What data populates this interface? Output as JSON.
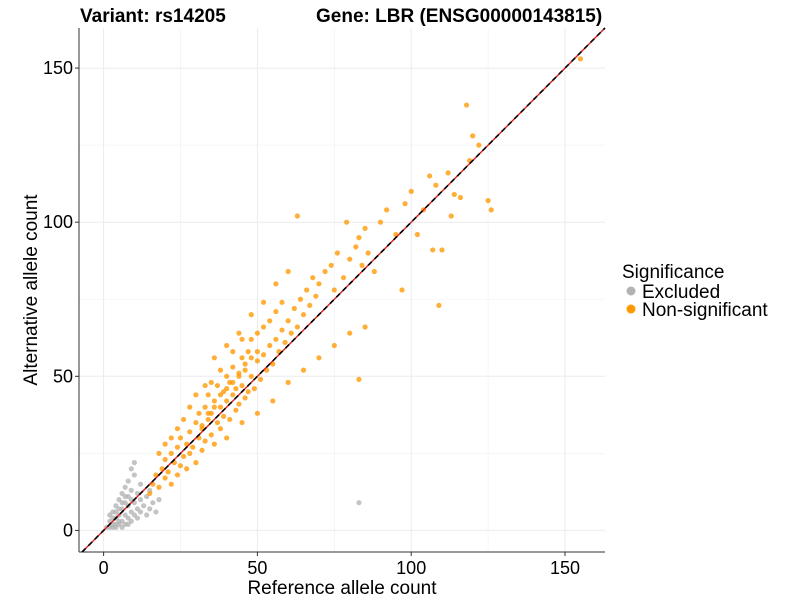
{
  "chart_data": {
    "type": "scatter",
    "title_left": "Variant: rs14205",
    "title_right": "Gene: LBR (ENSG00000143815)",
    "xlabel": "Reference allele count",
    "ylabel": "Alternative allele count",
    "xlim": [
      -8,
      163
    ],
    "ylim": [
      -7,
      163
    ],
    "x_ticks": [
      0,
      50,
      100,
      150
    ],
    "y_ticks": [
      0,
      50,
      100,
      150
    ],
    "grid": true,
    "legend": {
      "title": "Significance",
      "placement": "right",
      "entries": [
        {
          "label": "Excluded",
          "color": "#b3b3b3"
        },
        {
          "label": "Non-significant",
          "color": "#ff9900"
        }
      ]
    },
    "reference_lines": [
      {
        "kind": "identity",
        "color": "#e41a1c",
        "style": "solid"
      },
      {
        "kind": "fit",
        "color": "#000000",
        "style": "dashed"
      }
    ],
    "series": [
      {
        "name": "Excluded",
        "color": "#b3b3b3",
        "points": [
          [
            1,
            1
          ],
          [
            2,
            3
          ],
          [
            2,
            5
          ],
          [
            3,
            2
          ],
          [
            3,
            6
          ],
          [
            4,
            1
          ],
          [
            4,
            4
          ],
          [
            4,
            8
          ],
          [
            5,
            2
          ],
          [
            5,
            5
          ],
          [
            5,
            10
          ],
          [
            6,
            3
          ],
          [
            6,
            7
          ],
          [
            6,
            12
          ],
          [
            7,
            2
          ],
          [
            7,
            5
          ],
          [
            7,
            9
          ],
          [
            7,
            14
          ],
          [
            8,
            4
          ],
          [
            8,
            8
          ],
          [
            8,
            11
          ],
          [
            8,
            16
          ],
          [
            9,
            3
          ],
          [
            9,
            6
          ],
          [
            9,
            10
          ],
          [
            9,
            13
          ],
          [
            10,
            5
          ],
          [
            10,
            9
          ],
          [
            10,
            18
          ],
          [
            11,
            4
          ],
          [
            11,
            7
          ],
          [
            11,
            12
          ],
          [
            12,
            6
          ],
          [
            12,
            10
          ],
          [
            12,
            15
          ],
          [
            13,
            8
          ],
          [
            14,
            5
          ],
          [
            14,
            11
          ],
          [
            15,
            7
          ],
          [
            15,
            13
          ],
          [
            16,
            9
          ],
          [
            17,
            6
          ],
          [
            18,
            10
          ],
          [
            3,
            4
          ],
          [
            4,
            6
          ],
          [
            5,
            7
          ],
          [
            6,
            9
          ],
          [
            7,
            11
          ],
          [
            2,
            1
          ],
          [
            3,
            1
          ],
          [
            4,
            2
          ],
          [
            5,
            3
          ],
          [
            6,
            1
          ],
          [
            8,
            2
          ],
          [
            9,
            20
          ],
          [
            10,
            22
          ],
          [
            83,
            9
          ]
        ]
      },
      {
        "name": "Non-significant",
        "color": "#ff9900",
        "points": [
          [
            15,
            12
          ],
          [
            16,
            15
          ],
          [
            17,
            18
          ],
          [
            18,
            14
          ],
          [
            19,
            20
          ],
          [
            20,
            17
          ],
          [
            20,
            23
          ],
          [
            21,
            19
          ],
          [
            22,
            25
          ],
          [
            22,
            15
          ],
          [
            23,
            22
          ],
          [
            24,
            27
          ],
          [
            24,
            18
          ],
          [
            25,
            21
          ],
          [
            25,
            30
          ],
          [
            26,
            24
          ],
          [
            27,
            28
          ],
          [
            27,
            20
          ],
          [
            28,
            32
          ],
          [
            28,
            25
          ],
          [
            29,
            27
          ],
          [
            30,
            35
          ],
          [
            30,
            22
          ],
          [
            31,
            30
          ],
          [
            31,
            38
          ],
          [
            32,
            26
          ],
          [
            32,
            33
          ],
          [
            33,
            40
          ],
          [
            33,
            29
          ],
          [
            34,
            36
          ],
          [
            34,
            44
          ],
          [
            35,
            31
          ],
          [
            35,
            38
          ],
          [
            36,
            42
          ],
          [
            36,
            28
          ],
          [
            37,
            35
          ],
          [
            37,
            47
          ],
          [
            38,
            40
          ],
          [
            38,
            33
          ],
          [
            39,
            45
          ],
          [
            39,
            37
          ],
          [
            40,
            50
          ],
          [
            40,
            42
          ],
          [
            41,
            36
          ],
          [
            41,
            48
          ],
          [
            42,
            44
          ],
          [
            42,
            53
          ],
          [
            43,
            39
          ],
          [
            43,
            46
          ],
          [
            44,
            51
          ],
          [
            44,
            41
          ],
          [
            45,
            47
          ],
          [
            45,
            56
          ],
          [
            46,
            43
          ],
          [
            46,
            52
          ],
          [
            47,
            58
          ],
          [
            47,
            45
          ],
          [
            48,
            50
          ],
          [
            48,
            62
          ],
          [
            49,
            46
          ],
          [
            50,
            55
          ],
          [
            50,
            64
          ],
          [
            51,
            49
          ],
          [
            52,
            57
          ],
          [
            52,
            66
          ],
          [
            53,
            52
          ],
          [
            54,
            60
          ],
          [
            54,
            68
          ],
          [
            55,
            54
          ],
          [
            56,
            62
          ],
          [
            56,
            71
          ],
          [
            57,
            58
          ],
          [
            58,
            65
          ],
          [
            58,
            74
          ],
          [
            59,
            61
          ],
          [
            60,
            68
          ],
          [
            61,
            64
          ],
          [
            62,
            72
          ],
          [
            63,
            102
          ],
          [
            63,
            66
          ],
          [
            64,
            75
          ],
          [
            65,
            70
          ],
          [
            66,
            78
          ],
          [
            67,
            73
          ],
          [
            68,
            82
          ],
          [
            69,
            76
          ],
          [
            70,
            80
          ],
          [
            72,
            84
          ],
          [
            74,
            86
          ],
          [
            75,
            78
          ],
          [
            76,
            90
          ],
          [
            78,
            82
          ],
          [
            79,
            100
          ],
          [
            80,
            88
          ],
          [
            82,
            92
          ],
          [
            83,
            49
          ],
          [
            83,
            95
          ],
          [
            84,
            86
          ],
          [
            85,
            98
          ],
          [
            86,
            90
          ],
          [
            88,
            84
          ],
          [
            90,
            100
          ],
          [
            92,
            104
          ],
          [
            95,
            96
          ],
          [
            97,
            78
          ],
          [
            98,
            106
          ],
          [
            100,
            110
          ],
          [
            102,
            96
          ],
          [
            104,
            104
          ],
          [
            106,
            115
          ],
          [
            107,
            91
          ],
          [
            108,
            112
          ],
          [
            109,
            73
          ],
          [
            110,
            91
          ],
          [
            112,
            116
          ],
          [
            113,
            102
          ],
          [
            114,
            109
          ],
          [
            116,
            108
          ],
          [
            118,
            138
          ],
          [
            119,
            120
          ],
          [
            120,
            128
          ],
          [
            122,
            125
          ],
          [
            125,
            107
          ],
          [
            126,
            104
          ],
          [
            155,
            153
          ],
          [
            35,
            48
          ],
          [
            38,
            52
          ],
          [
            42,
            58
          ],
          [
            45,
            62
          ],
          [
            30,
            44
          ],
          [
            33,
            47
          ],
          [
            28,
            40
          ],
          [
            26,
            36
          ],
          [
            24,
            33
          ],
          [
            22,
            30
          ],
          [
            20,
            28
          ],
          [
            18,
            25
          ],
          [
            40,
            30
          ],
          [
            45,
            35
          ],
          [
            50,
            38
          ],
          [
            55,
            42
          ],
          [
            60,
            48
          ],
          [
            65,
            52
          ],
          [
            70,
            56
          ],
          [
            75,
            60
          ],
          [
            80,
            64
          ],
          [
            85,
            66
          ],
          [
            36,
            56
          ],
          [
            40,
            60
          ],
          [
            44,
            64
          ],
          [
            48,
            70
          ],
          [
            52,
            74
          ],
          [
            56,
            80
          ],
          [
            60,
            84
          ],
          [
            32,
            34
          ],
          [
            34,
            38
          ],
          [
            36,
            40
          ],
          [
            38,
            44
          ],
          [
            40,
            46
          ],
          [
            42,
            48
          ],
          [
            44,
            50
          ],
          [
            46,
            54
          ],
          [
            48,
            56
          ],
          [
            50,
            58
          ]
        ]
      }
    ]
  }
}
